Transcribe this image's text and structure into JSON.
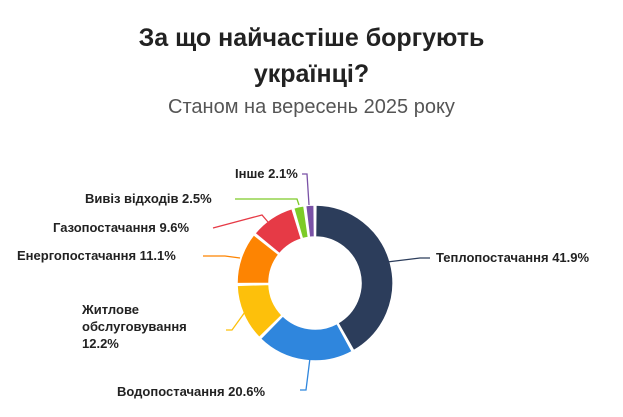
{
  "chart_data": {
    "type": "pie",
    "donut": true,
    "title": "За що найчастіше боргують українці?",
    "title_lines": [
      "За що найчастіше боргують",
      "українці?"
    ],
    "subtitle": "Станом на вересень 2025 року",
    "slices": [
      {
        "name": "Теплопостачання",
        "value": 41.9,
        "label": "Теплопостачання 41.9%",
        "color": "#2c3d5b"
      },
      {
        "name": "Водопостачання",
        "value": 20.6,
        "label": "Водопостачання 20.6%",
        "color": "#2f86dd"
      },
      {
        "name": "Житлове обслуговування",
        "value": 12.2,
        "label_lines": [
          "Житлове",
          "обслуговування",
          "12.2%"
        ],
        "color": "#fdc00b"
      },
      {
        "name": "Енергопостачання",
        "value": 11.1,
        "label": "Енергопостачання 11.1%",
        "color": "#fd8402"
      },
      {
        "name": "Газопостачання",
        "value": 9.6,
        "label": "Газопостачання 9.6%",
        "color": "#e63a46"
      },
      {
        "name": "Вивіз відходів",
        "value": 2.5,
        "label": "Вивіз відходів 2.5%",
        "color": "#7dcb27"
      },
      {
        "name": "Інше",
        "value": 2.1,
        "label": "Інше 2.1%",
        "color": "#7a52a6"
      }
    ]
  }
}
